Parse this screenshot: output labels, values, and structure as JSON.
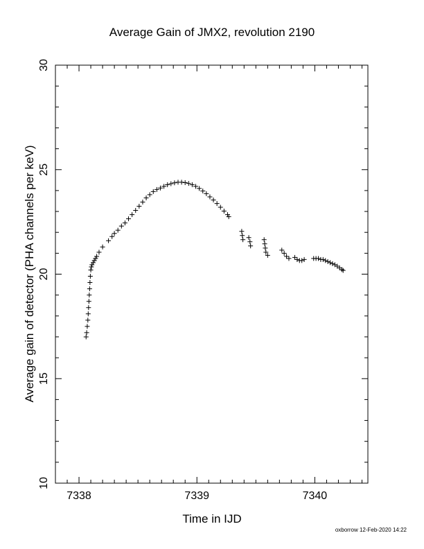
{
  "chart_data": {
    "type": "scatter",
    "title": "Average Gain of JMX2, revolution 2190",
    "xlabel": "Time in IJD",
    "ylabel": "Average gain of detector (PHA channels per keV)",
    "xlim": [
      7337.8,
      7340.45
    ],
    "ylim": [
      10,
      30
    ],
    "xticks": [
      7338,
      7339,
      7340
    ],
    "yticks": [
      10,
      15,
      20,
      25,
      30
    ],
    "grid": false,
    "legend": "none",
    "marker": "plus",
    "color": "#000000",
    "series": [
      {
        "points": [
          [
            7338.06,
            17.0
          ],
          [
            7338.065,
            17.2
          ],
          [
            7338.07,
            17.5
          ],
          [
            7338.075,
            17.8
          ],
          [
            7338.078,
            18.1
          ],
          [
            7338.081,
            18.4
          ],
          [
            7338.084,
            18.7
          ],
          [
            7338.087,
            19.0
          ],
          [
            7338.09,
            19.3
          ],
          [
            7338.093,
            19.6
          ],
          [
            7338.096,
            19.9
          ],
          [
            7338.1,
            20.2
          ],
          [
            7338.105,
            20.35
          ],
          [
            7338.11,
            20.45
          ],
          [
            7338.12,
            20.55
          ],
          [
            7338.13,
            20.65
          ],
          [
            7338.14,
            20.75
          ],
          [
            7338.15,
            20.85
          ],
          [
            7338.17,
            21.05
          ],
          [
            7338.2,
            21.3
          ],
          [
            7338.25,
            21.6
          ],
          [
            7338.28,
            21.8
          ],
          [
            7338.3,
            21.95
          ],
          [
            7338.33,
            22.1
          ],
          [
            7338.36,
            22.3
          ],
          [
            7338.39,
            22.45
          ],
          [
            7338.42,
            22.65
          ],
          [
            7338.45,
            22.85
          ],
          [
            7338.48,
            23.05
          ],
          [
            7338.51,
            23.25
          ],
          [
            7338.54,
            23.45
          ],
          [
            7338.57,
            23.65
          ],
          [
            7338.6,
            23.8
          ],
          [
            7338.63,
            23.95
          ],
          [
            7338.66,
            24.05
          ],
          [
            7338.69,
            24.12
          ],
          [
            7338.72,
            24.2
          ],
          [
            7338.75,
            24.28
          ],
          [
            7338.78,
            24.33
          ],
          [
            7338.81,
            24.37
          ],
          [
            7338.84,
            24.4
          ],
          [
            7338.87,
            24.4
          ],
          [
            7338.9,
            24.38
          ],
          [
            7338.93,
            24.34
          ],
          [
            7338.96,
            24.28
          ],
          [
            7338.99,
            24.2
          ],
          [
            7339.02,
            24.1
          ],
          [
            7339.05,
            23.98
          ],
          [
            7339.08,
            23.85
          ],
          [
            7339.11,
            23.7
          ],
          [
            7339.14,
            23.55
          ],
          [
            7339.17,
            23.38
          ],
          [
            7339.2,
            23.2
          ],
          [
            7339.23,
            23.02
          ],
          [
            7339.26,
            22.85
          ],
          [
            7339.27,
            22.75
          ],
          [
            7339.38,
            22.05
          ],
          [
            7339.385,
            21.85
          ],
          [
            7339.39,
            21.65
          ],
          [
            7339.44,
            21.75
          ],
          [
            7339.45,
            21.55
          ],
          [
            7339.455,
            21.35
          ],
          [
            7339.57,
            21.65
          ],
          [
            7339.575,
            21.45
          ],
          [
            7339.58,
            21.25
          ],
          [
            7339.585,
            21.05
          ],
          [
            7339.6,
            20.9
          ],
          [
            7339.72,
            21.15
          ],
          [
            7339.74,
            21.0
          ],
          [
            7339.76,
            20.85
          ],
          [
            7339.78,
            20.75
          ],
          [
            7339.83,
            20.8
          ],
          [
            7339.85,
            20.7
          ],
          [
            7339.87,
            20.65
          ],
          [
            7339.89,
            20.65
          ],
          [
            7339.91,
            20.7
          ],
          [
            7339.99,
            20.75
          ],
          [
            7340.01,
            20.75
          ],
          [
            7340.03,
            20.75
          ],
          [
            7340.05,
            20.7
          ],
          [
            7340.07,
            20.7
          ],
          [
            7340.09,
            20.65
          ],
          [
            7340.11,
            20.6
          ],
          [
            7340.13,
            20.55
          ],
          [
            7340.15,
            20.5
          ],
          [
            7340.17,
            20.45
          ],
          [
            7340.19,
            20.38
          ],
          [
            7340.21,
            20.3
          ],
          [
            7340.23,
            20.22
          ],
          [
            7340.24,
            20.18
          ]
        ]
      }
    ]
  },
  "footer": {
    "credit": "oxborrow 12-Feb-2020 14:22"
  }
}
